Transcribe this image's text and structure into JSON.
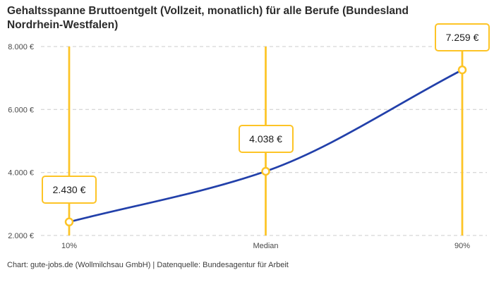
{
  "title": "Gehaltsspanne Bruttoentgelt (Vollzeit, monatlich) für alle Berufe (Bundesland Nordrhein-Westfalen)",
  "attribution": "Chart: gute-jobs.de (Wollmilchsau GmbH) | Datenquelle: Bundesagentur für Arbeit",
  "colors": {
    "line": "#2240aa",
    "accent": "#fdc426",
    "grid": "#cccccc",
    "title_text": "#2b2b2b",
    "axis_text": "#4a4a4a"
  },
  "chart_data": {
    "type": "line",
    "title": "Gehaltsspanne Bruttoentgelt (Vollzeit, monatlich) für alle Berufe (Bundesland Nordrhein-Westfalen)",
    "categories": [
      "10%",
      "Median",
      "90%"
    ],
    "values": [
      2430,
      4038,
      7259
    ],
    "value_labels": [
      "2.430 €",
      "4.038 €",
      "7.259 €"
    ],
    "y_ticks": {
      "values": [
        2000,
        4000,
        6000,
        8000
      ],
      "labels": [
        "2.000 €",
        "4.000 €",
        "6.000 €",
        "8.000 €"
      ]
    },
    "ylim": [
      2000,
      8000
    ],
    "xlabel": "",
    "ylabel": "",
    "grid": "horizontal-dashed",
    "legend": "none",
    "annotations": "yellow vertical rule with framed value label at each percentile marker"
  }
}
